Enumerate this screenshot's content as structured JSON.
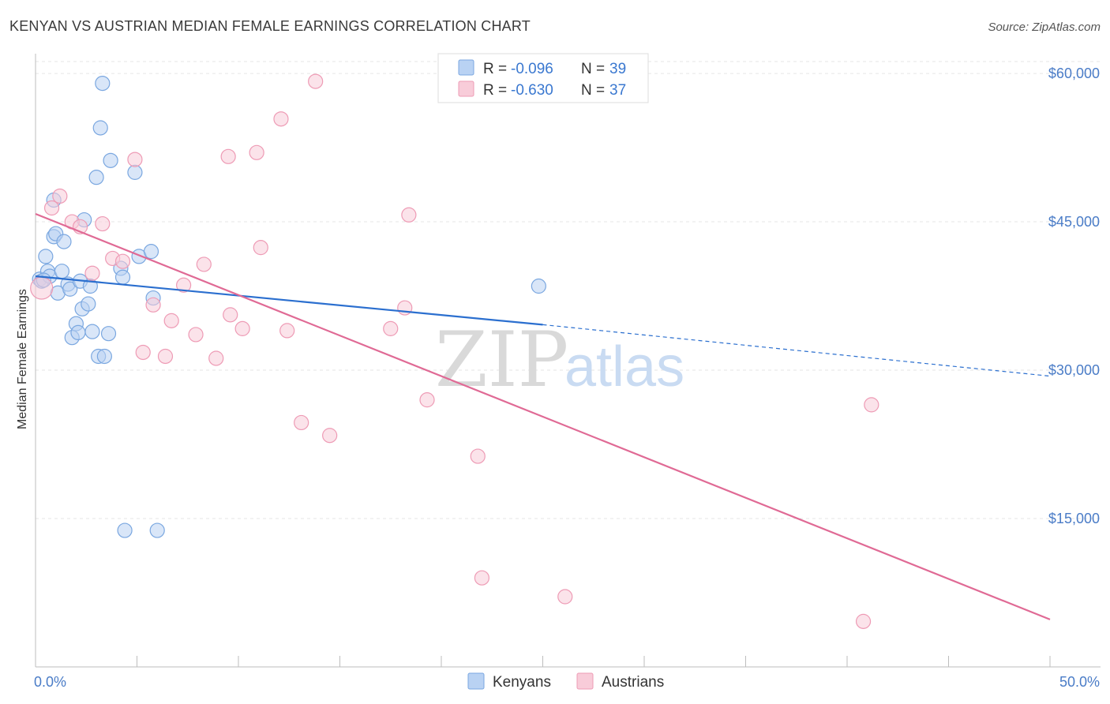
{
  "chart_data": {
    "type": "scatter",
    "title": "KENYAN VS AUSTRIAN MEDIAN FEMALE EARNINGS CORRELATION CHART",
    "source": "Source: ZipAtlas.com",
    "ylabel": "Median Female Earnings",
    "xlim": [
      0,
      50
    ],
    "ylim": [
      0,
      62000
    ],
    "x_tick_labels": [
      "0.0%",
      "50.0%"
    ],
    "y_ticks": [
      {
        "value": 15000,
        "label": "$15,000"
      },
      {
        "value": 30000,
        "label": "$30,000"
      },
      {
        "value": 45000,
        "label": "$45,000"
      },
      {
        "value": 60000,
        "label": "$60,000"
      }
    ],
    "grid": true,
    "watermark": {
      "zip": "ZIP",
      "atlas": "atlas"
    },
    "legend_position": "top-center",
    "stats": [
      {
        "r_label": "R =",
        "r_value": "-0.096",
        "n_label": "N =",
        "n_value": "39"
      },
      {
        "r_label": "R =",
        "r_value": "-0.630",
        "n_label": "N =",
        "n_value": "37"
      }
    ],
    "series": [
      {
        "name": "Kenyans",
        "color": "#7aa7e0",
        "fill": "#b9d2f3",
        "trend_color": "#2b6fcf",
        "trend": {
          "x0": 0,
          "y0": 39500,
          "x1": 25,
          "y1": 34600,
          "dash_to_x": 50,
          "dash_to_y": 29400
        },
        "points": [
          [
            0.2,
            39200
          ],
          [
            0.3,
            39000
          ],
          [
            0.5,
            41500
          ],
          [
            0.6,
            40000
          ],
          [
            0.7,
            39500
          ],
          [
            0.9,
            47200
          ],
          [
            0.9,
            43500
          ],
          [
            1.0,
            43800
          ],
          [
            1.1,
            37800
          ],
          [
            1.3,
            40000
          ],
          [
            1.4,
            43000
          ],
          [
            1.6,
            38700
          ],
          [
            1.7,
            38200
          ],
          [
            1.8,
            33300
          ],
          [
            2.0,
            34700
          ],
          [
            2.1,
            33800
          ],
          [
            2.2,
            39000
          ],
          [
            2.3,
            36200
          ],
          [
            2.4,
            45200
          ],
          [
            2.6,
            36700
          ],
          [
            2.7,
            38500
          ],
          [
            2.8,
            33900
          ],
          [
            3.0,
            49500
          ],
          [
            3.1,
            31400
          ],
          [
            3.2,
            54500
          ],
          [
            3.3,
            59000
          ],
          [
            3.4,
            31400
          ],
          [
            3.6,
            33700
          ],
          [
            3.7,
            51200
          ],
          [
            4.2,
            40300
          ],
          [
            4.3,
            39400
          ],
          [
            4.4,
            13800
          ],
          [
            4.9,
            50000
          ],
          [
            5.1,
            41500
          ],
          [
            5.7,
            42000
          ],
          [
            5.8,
            37300
          ],
          [
            6.0,
            13800
          ],
          [
            24.8,
            38500
          ],
          [
            0.4,
            39100
          ]
        ]
      },
      {
        "name": "Austrians",
        "color": "#ee9bb5",
        "fill": "#f8ccd9",
        "trend_color": "#e06a95",
        "trend": {
          "x0": 0,
          "y0": 45800,
          "x1": 50,
          "y1": 4800
        },
        "points": [
          [
            0.3,
            38300
          ],
          [
            0.8,
            46400
          ],
          [
            1.2,
            47600
          ],
          [
            1.8,
            45000
          ],
          [
            2.2,
            44500
          ],
          [
            3.3,
            44800
          ],
          [
            2.8,
            39800
          ],
          [
            3.8,
            41300
          ],
          [
            4.3,
            41000
          ],
          [
            4.9,
            51300
          ],
          [
            5.3,
            31800
          ],
          [
            5.8,
            36600
          ],
          [
            6.4,
            31400
          ],
          [
            6.7,
            35000
          ],
          [
            7.3,
            38600
          ],
          [
            7.9,
            33600
          ],
          [
            8.3,
            40700
          ],
          [
            8.9,
            31200
          ],
          [
            9.5,
            51600
          ],
          [
            9.6,
            35600
          ],
          [
            10.2,
            34200
          ],
          [
            10.9,
            52000
          ],
          [
            11.1,
            42400
          ],
          [
            12.1,
            55400
          ],
          [
            12.4,
            34000
          ],
          [
            13.1,
            24700
          ],
          [
            13.8,
            59200
          ],
          [
            14.5,
            23400
          ],
          [
            17.5,
            34200
          ],
          [
            18.2,
            36300
          ],
          [
            18.4,
            45700
          ],
          [
            19.3,
            27000
          ],
          [
            21.8,
            21300
          ],
          [
            22.0,
            9000
          ],
          [
            26.1,
            7100
          ],
          [
            41.2,
            26500
          ],
          [
            40.8,
            4600
          ]
        ]
      }
    ]
  }
}
